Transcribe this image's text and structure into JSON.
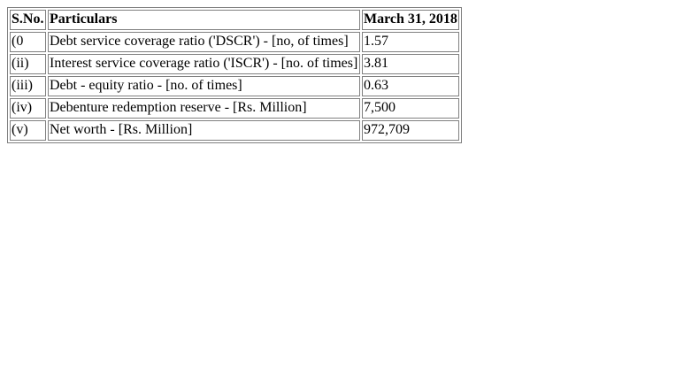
{
  "table": {
    "headers": {
      "sno": "S.No.",
      "particulars": "Particulars",
      "value": "March 31, 2018"
    },
    "rows": [
      {
        "sno": "(0",
        "particulars": "Debt service coverage ratio ('DSCR') - [no, of times]",
        "value": "1.57"
      },
      {
        "sno": "(ii)",
        "particulars": "Interest service coverage ratio ('ISCR') - [no. of times]",
        "value": "3.81"
      },
      {
        "sno": "(iii)",
        "particulars": "Debt - equity ratio - [no. of times]",
        "value": "0.63"
      },
      {
        "sno": "(iv)",
        "particulars": "Debenture redemption reserve - [Rs. Million]",
        "value": "7,500"
      },
      {
        "sno": "(v)",
        "particulars": "Net worth - [Rs. Million]",
        "value": "972,709"
      }
    ]
  }
}
